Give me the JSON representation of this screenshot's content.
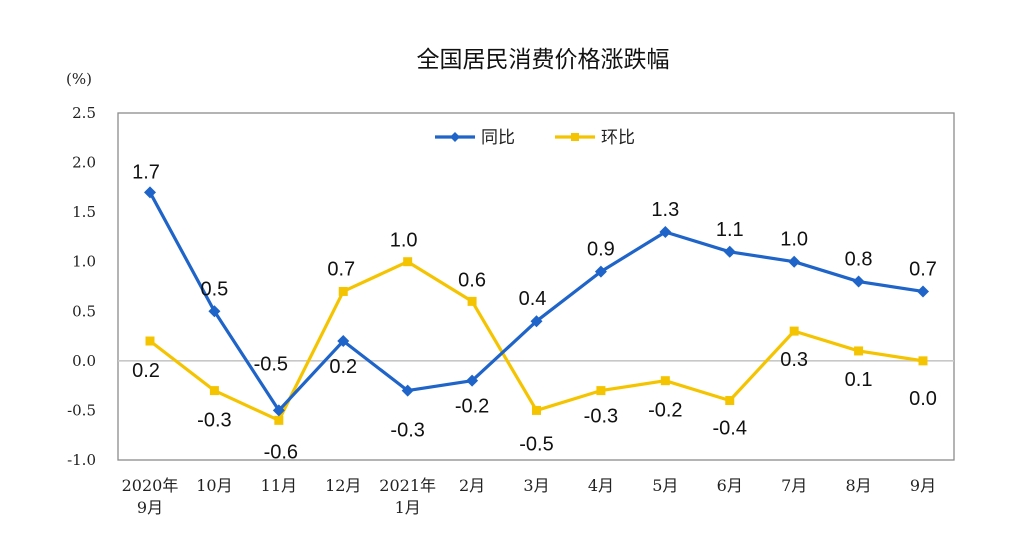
{
  "chart_data": {
    "type": "line",
    "title": "全国居民消费价格涨跌幅",
    "unit_label": "(%)",
    "ylim": [
      -1.0,
      2.5
    ],
    "yticks": [
      "2.5",
      "2.0",
      "1.5",
      "1.0",
      "0.5",
      "0.0",
      "-0.5",
      "-1.0"
    ],
    "categories": [
      [
        "2020年",
        "9月"
      ],
      [
        "10月"
      ],
      [
        "11月"
      ],
      [
        "12月"
      ],
      [
        "2021年",
        "1月"
      ],
      [
        "2月"
      ],
      [
        "3月"
      ],
      [
        "4月"
      ],
      [
        "5月"
      ],
      [
        "6月"
      ],
      [
        "7月"
      ],
      [
        "8月"
      ],
      [
        "9月"
      ]
    ],
    "series": [
      {
        "name": "同比",
        "color": "#1f64c8",
        "marker": "diamond",
        "values": [
          1.7,
          0.5,
          -0.5,
          0.2,
          -0.3,
          -0.2,
          0.4,
          0.9,
          1.3,
          1.1,
          1.0,
          0.8,
          0.7
        ],
        "labels": [
          "1.7",
          "0.5",
          "-0.5",
          "0.2",
          "-0.3",
          "-0.2",
          "0.4",
          "0.9",
          "1.3",
          "1.1",
          "1.0",
          "0.8",
          "0.7"
        ]
      },
      {
        "name": "环比",
        "color": "#f5c400",
        "marker": "square",
        "values": [
          0.2,
          -0.3,
          -0.6,
          0.7,
          1.0,
          0.6,
          -0.5,
          -0.3,
          -0.2,
          -0.4,
          0.3,
          0.1,
          0.0
        ],
        "labels": [
          "0.2",
          "-0.3",
          "-0.6",
          "0.7",
          "1.0",
          "0.6",
          "-0.5",
          "-0.3",
          "-0.2",
          "-0.4",
          "0.3",
          "0.1",
          "0.0"
        ]
      }
    ],
    "legend_position": "top-center",
    "grid": false,
    "zero_line": true
  }
}
